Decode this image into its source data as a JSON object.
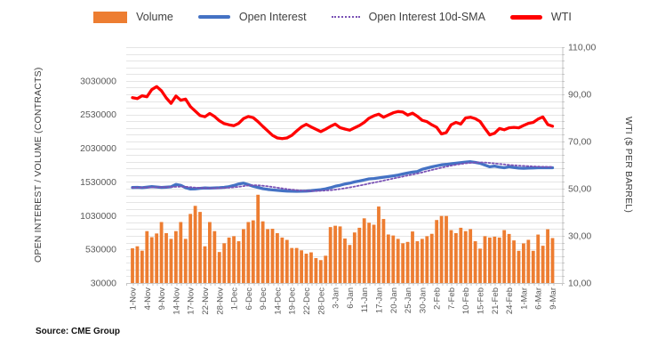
{
  "legend": {
    "items": [
      {
        "label": "Volume",
        "style": "bar",
        "color": "#ED7D31"
      },
      {
        "label": "Open Interest",
        "style": "solid",
        "color": "#4472C4"
      },
      {
        "label": "Open Interest 10d-SMA",
        "style": "dotted",
        "color": "#7A52B5"
      },
      {
        "label": "WTI",
        "style": "wti",
        "color": "#FF0000"
      }
    ]
  },
  "source": "Source: CME Group",
  "chart_data": {
    "type": "bar",
    "subtype": "combo-bar-line",
    "grid": "on",
    "legend_position": "top",
    "left_axis": {
      "title": "OPEN INTEREST / VOLUME (CONTRACTS)",
      "min": 30000,
      "max": 3530000,
      "minor_interval": 100000,
      "ticks": [
        {
          "label": "3030000",
          "value": 3030000
        },
        {
          "label": "2530000",
          "value": 2530000
        },
        {
          "label": "2030000",
          "value": 2030000
        },
        {
          "label": "1530000",
          "value": 1530000
        },
        {
          "label": "1030000",
          "value": 1030000
        },
        {
          "label": "530000",
          "value": 530000
        },
        {
          "label": "30000",
          "value": 30000
        }
      ]
    },
    "right_axis": {
      "title": "WTI ($ PER BARREL)",
      "min": 10,
      "max": 110,
      "ticks": [
        {
          "label": "110,00",
          "value": 110
        },
        {
          "label": "90,00",
          "value": 90
        },
        {
          "label": "70,00",
          "value": 70
        },
        {
          "label": "50,00",
          "value": 50
        },
        {
          "label": "30,00",
          "value": 30
        },
        {
          "label": "10,00",
          "value": 10
        }
      ]
    },
    "x_tick_labels": [
      "1-Nov",
      "4-Nov",
      "9-Nov",
      "14-Nov",
      "17-Nov",
      "22-Nov",
      "28-Nov",
      "1-Dec",
      "6-Dec",
      "9-Dec",
      "14-Dec",
      "19-Dec",
      "22-Dec",
      "28-Dec",
      "3-Jan",
      "6-Jan",
      "11-Jan",
      "17-Jan",
      "20-Jan",
      "25-Jan",
      "30-Jan",
      "2-Feb",
      "7-Feb",
      "10-Feb",
      "15-Feb",
      "21-Feb",
      "24-Feb",
      "1-Mar",
      "6-Mar",
      "9-Mar"
    ],
    "x_label_every_n_bars": 3,
    "series": [
      {
        "name": "Volume",
        "type": "bar",
        "axis": "left",
        "color": "#ED7D31",
        "values": [
          545000,
          575000,
          510000,
          800000,
          710000,
          765000,
          935000,
          770000,
          685000,
          800000,
          935000,
          685000,
          1055000,
          1175000,
          1085000,
          575000,
          935000,
          800000,
          490000,
          620000,
          705000,
          725000,
          650000,
          830000,
          935000,
          960000,
          1340000,
          945000,
          830000,
          835000,
          770000,
          705000,
          670000,
          550000,
          550000,
          515000,
          465000,
          485000,
          400000,
          370000,
          435000,
          860000,
          880000,
          870000,
          690000,
          595000,
          780000,
          850000,
          990000,
          925000,
          895000,
          1165000,
          980000,
          750000,
          735000,
          685000,
          620000,
          640000,
          795000,
          650000,
          685000,
          725000,
          760000,
          965000,
          1025000,
          1025000,
          815000,
          770000,
          850000,
          800000,
          830000,
          650000,
          540000,
          725000,
          705000,
          718000,
          705000,
          815000,
          758000,
          662000,
          508000,
          618000,
          671000,
          508000,
          749000,
          583000,
          828000,
          697000
        ]
      },
      {
        "name": "Open Interest",
        "type": "line",
        "style": "solid",
        "axis": "left",
        "color": "#4472C4",
        "values": [
          1447000,
          1450000,
          1445000,
          1452000,
          1460000,
          1455000,
          1448000,
          1452000,
          1458000,
          1492000,
          1480000,
          1445000,
          1425000,
          1428000,
          1435000,
          1440000,
          1438000,
          1442000,
          1445000,
          1450000,
          1460000,
          1478000,
          1500000,
          1512000,
          1490000,
          1465000,
          1448000,
          1430000,
          1420000,
          1412000,
          1405000,
          1400000,
          1395000,
          1392000,
          1390000,
          1392000,
          1395000,
          1400000,
          1408000,
          1415000,
          1428000,
          1445000,
          1465000,
          1480000,
          1500000,
          1512000,
          1530000,
          1543000,
          1560000,
          1575000,
          1580000,
          1590000,
          1600000,
          1610000,
          1620000,
          1632000,
          1648000,
          1662000,
          1675000,
          1685000,
          1718000,
          1735000,
          1754000,
          1770000,
          1784000,
          1790000,
          1800000,
          1808000,
          1815000,
          1825000,
          1830000,
          1820000,
          1807000,
          1780000,
          1755000,
          1765000,
          1750000,
          1740000,
          1755000,
          1745000,
          1735000,
          1732000,
          1735000,
          1738000,
          1740000,
          1740000,
          1740000,
          1740000
        ]
      },
      {
        "name": "Open Interest 10d-SMA",
        "type": "line",
        "style": "dotted",
        "axis": "left",
        "color": "#7A52B5",
        "values": [
          1446000,
          1447000,
          1447000,
          1448000,
          1450000,
          1451000,
          1452000,
          1453000,
          1455000,
          1458000,
          1460000,
          1458000,
          1452000,
          1446000,
          1442000,
          1438000,
          1436000,
          1436000,
          1438000,
          1440000,
          1444000,
          1450000,
          1458000,
          1468000,
          1478000,
          1482000,
          1480000,
          1474000,
          1465000,
          1455000,
          1444000,
          1434000,
          1424000,
          1415000,
          1408000,
          1402000,
          1398000,
          1396000,
          1396000,
          1398000,
          1402000,
          1408000,
          1416000,
          1425000,
          1436000,
          1448000,
          1462000,
          1476000,
          1490000,
          1505000,
          1520000,
          1535000,
          1550000,
          1565000,
          1580000,
          1595000,
          1610000,
          1625000,
          1640000,
          1655000,
          1672000,
          1690000,
          1708000,
          1725000,
          1742000,
          1758000,
          1772000,
          1785000,
          1796000,
          1806000,
          1813000,
          1818000,
          1820000,
          1818000,
          1812000,
          1805000,
          1797000,
          1790000,
          1783000,
          1777000,
          1772000,
          1768000,
          1764000,
          1760000,
          1757000,
          1755000,
          1753000,
          1752000
        ]
      },
      {
        "name": "WTI",
        "type": "line",
        "style": "solid",
        "axis": "right",
        "color": "#FF0000",
        "values": [
          88.6,
          88.2,
          89.4,
          89.0,
          92.0,
          93.3,
          91.5,
          88.5,
          86.2,
          89.3,
          87.5,
          88.0,
          84.8,
          82.9,
          81.0,
          80.5,
          81.9,
          80.6,
          78.8,
          77.6,
          77.1,
          76.7,
          77.7,
          79.7,
          80.6,
          80.1,
          78.4,
          76.4,
          74.5,
          72.6,
          71.5,
          71.2,
          71.5,
          72.6,
          74.5,
          76.2,
          77.3,
          76.2,
          75.2,
          74.2,
          75.2,
          76.4,
          77.4,
          75.9,
          75.3,
          74.8,
          75.8,
          76.8,
          78.1,
          79.9,
          80.9,
          81.6,
          80.3,
          81.2,
          82.2,
          82.7,
          82.5,
          81.2,
          82.0,
          80.7,
          79.0,
          78.4,
          77.1,
          76.0,
          73.2,
          73.8,
          77.1,
          78.1,
          77.4,
          80.0,
          80.3,
          79.7,
          78.5,
          75.5,
          72.8,
          73.5,
          75.5,
          75.0,
          75.8,
          76.0,
          75.8,
          76.8,
          77.7,
          78.1,
          79.5,
          80.4,
          77.2,
          76.5
        ]
      }
    ]
  }
}
